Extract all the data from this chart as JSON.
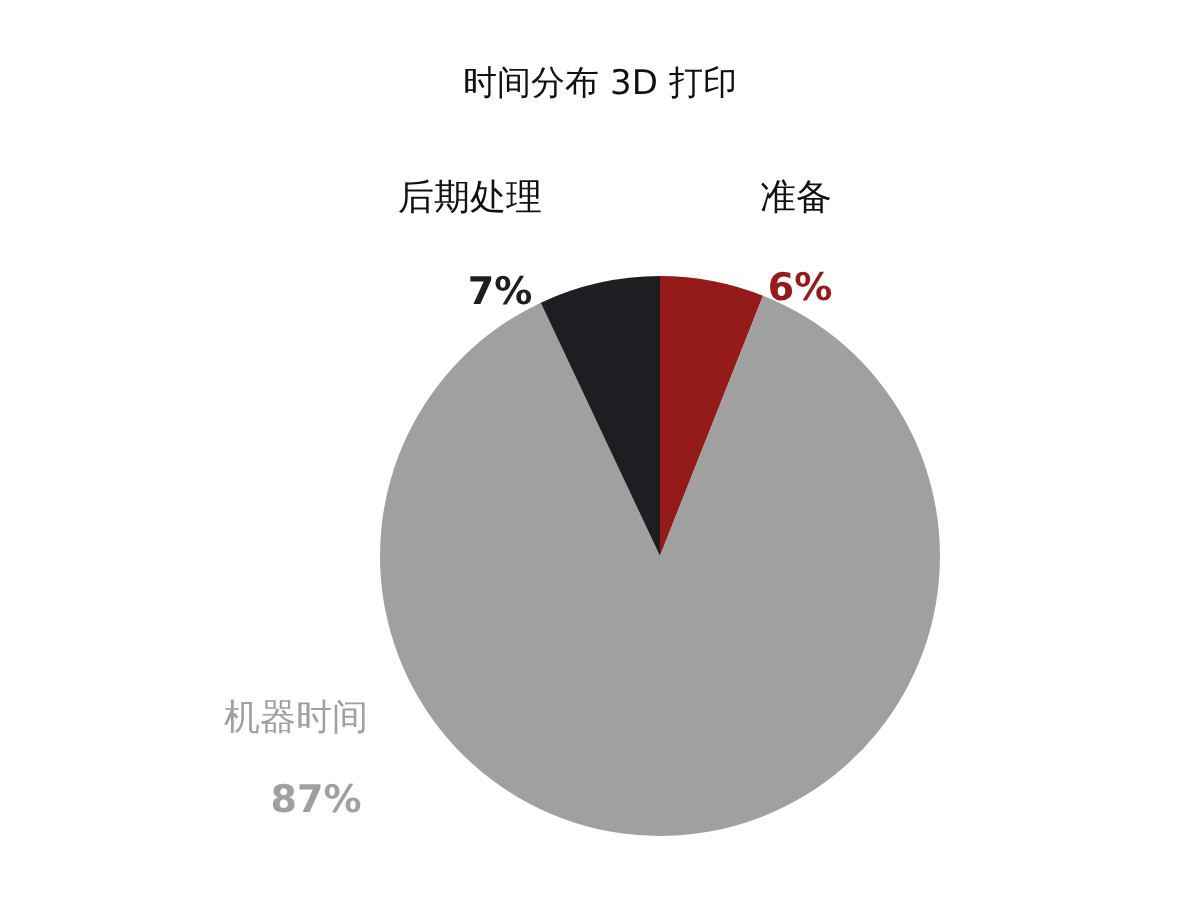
{
  "chart_data": {
    "type": "pie",
    "title": "时间分布 3D 打印",
    "categories": [
      "准备",
      "机器时间",
      "后期处理"
    ],
    "values": [
      6,
      87,
      7
    ],
    "colors": [
      "#951b1b",
      "#a0a0a0",
      "#1d1e22"
    ],
    "value_labels": [
      "6%",
      "87%",
      "7%"
    ],
    "legend": false
  }
}
